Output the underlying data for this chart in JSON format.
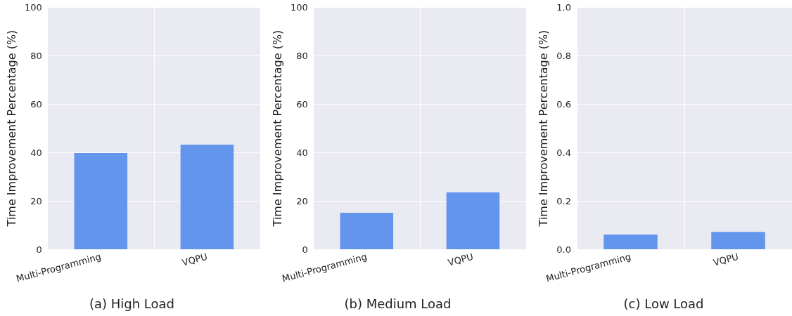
{
  "chart_data": [
    {
      "type": "bar",
      "title": "(a) High Load",
      "ylabel": "Time Improvement Percentage (%)",
      "categories": [
        "Multi-Programming",
        "VQPU"
      ],
      "values": [
        39.7,
        43.2
      ],
      "color": "#6495ed",
      "ylim": [
        0,
        100
      ],
      "yticks": [
        0,
        20,
        40,
        60,
        80,
        100
      ],
      "grid": true
    },
    {
      "type": "bar",
      "title": "(b) Medium Load",
      "ylabel": "Time Improvement Percentage (%)",
      "categories": [
        "Multi-Programming",
        "VQPU"
      ],
      "values": [
        15.1,
        23.5
      ],
      "color": "#6495ed",
      "ylim": [
        0,
        100
      ],
      "yticks": [
        0,
        20,
        40,
        60,
        80,
        100
      ],
      "grid": true
    },
    {
      "type": "bar",
      "title": "(c) Low Load",
      "ylabel": "Time Improvement Percentage (%)",
      "categories": [
        "Multi-Programming",
        "VQPU"
      ],
      "values": [
        0.061,
        0.072
      ],
      "color": "#6495ed",
      "ylim": [
        0,
        1
      ],
      "yticks": [
        {
          "value": 0,
          "label": "0.0"
        },
        {
          "value": 0.2,
          "label": "0.2"
        },
        {
          "value": 0.4,
          "label": "0.4"
        },
        {
          "value": 0.6,
          "label": "0.6"
        },
        {
          "value": 0.8,
          "label": "0.8"
        },
        {
          "value": 1,
          "label": "1.0"
        }
      ],
      "grid": true
    }
  ]
}
